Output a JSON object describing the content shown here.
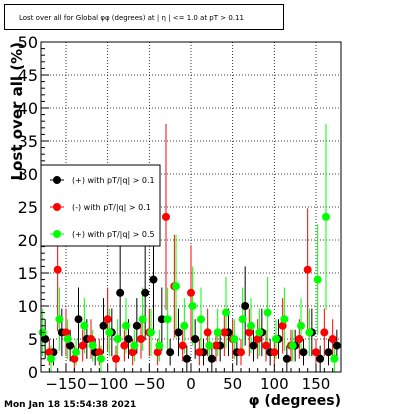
{
  "header": {
    "title": "Lost over all for Global φφ (degrees) at | η | <= 1.0 at pT > 0.11"
  },
  "footer": {
    "timestamp": "Mon Jan 18 15:54:38 2021"
  },
  "colors": {
    "series_black": "#000000",
    "series_red": "#ff0000",
    "series_green": "#00ff00",
    "series_orange": "#b8860b"
  },
  "chart_data": {
    "type": "scatter",
    "xlabel": "φ (degrees)",
    "ylabel": "Lost over all (%)",
    "xlim": [
      -180,
      180
    ],
    "ylim": [
      0,
      50
    ],
    "x_ticks": [
      -150,
      -100,
      -50,
      0,
      50,
      100,
      150
    ],
    "x_tick_labels": [
      "−150",
      "−100",
      "−50",
      "0",
      "50",
      "100",
      "150"
    ],
    "y_ticks": [
      0,
      5,
      10,
      15,
      20,
      25,
      30,
      35,
      40,
      45,
      50
    ],
    "grid": true,
    "legend_position": "middle-left",
    "series": [
      {
        "name": "(+) with pT/|q| > 0.1",
        "color": "#000000",
        "x": [
          -175,
          -165,
          -155,
          -145,
          -135,
          -125,
          -115,
          -105,
          -95,
          -85,
          -75,
          -65,
          -55,
          -45,
          -35,
          -25,
          -15,
          -5,
          5,
          15,
          25,
          35,
          45,
          55,
          65,
          75,
          85,
          95,
          105,
          115,
          125,
          135,
          145,
          155,
          165,
          175
        ],
        "y": [
          5,
          3,
          6,
          4,
          8,
          5,
          3,
          7,
          6,
          12,
          5,
          7,
          12,
          14,
          8,
          3,
          6,
          2,
          5,
          3,
          2,
          4,
          6,
          3,
          10,
          4,
          6,
          3,
          5,
          2,
          4,
          3,
          6,
          2,
          3,
          4
        ]
      },
      {
        "name": "(-) with pT/|q| > 0.1",
        "color": "#ff0000",
        "x": [
          -170,
          -160,
          -150,
          -140,
          -130,
          -120,
          -110,
          -100,
          -90,
          -80,
          -70,
          -60,
          -50,
          -40,
          -30,
          -20,
          -10,
          0,
          10,
          20,
          30,
          40,
          50,
          60,
          70,
          80,
          90,
          100,
          110,
          120,
          130,
          140,
          150,
          160,
          170
        ],
        "y": [
          3,
          15.5,
          6,
          2,
          4,
          5,
          3,
          8,
          2,
          4,
          3,
          5,
          6,
          3,
          23.5,
          13,
          4,
          12,
          3,
          6,
          4,
          6,
          5,
          3,
          6,
          5,
          4,
          3,
          7,
          4,
          5,
          15.5,
          3,
          6,
          5
        ]
      },
      {
        "name": "(+) with pT/|q| > 0.5",
        "color": "#00ff00",
        "x": [
          -178,
          -168,
          -158,
          -148,
          -138,
          -128,
          -118,
          -108,
          -98,
          -88,
          -78,
          -68,
          -58,
          -48,
          -38,
          -28,
          -18,
          -8,
          2,
          12,
          22,
          32,
          42,
          52,
          62,
          72,
          82,
          92,
          102,
          112,
          122,
          132,
          142,
          152,
          162,
          172
        ],
        "y": [
          6,
          2,
          8,
          5,
          3,
          7,
          4,
          2,
          6,
          5,
          7,
          4,
          8,
          6,
          4,
          8,
          13,
          7,
          10,
          8,
          4,
          6,
          9,
          5,
          8,
          7,
          6,
          9,
          5,
          8,
          4,
          7,
          6,
          14,
          23.5,
          2
        ]
      }
    ],
    "legend": [
      {
        "label": "(+) with pT/|q| > 0.1",
        "color": "#000000"
      },
      {
        "label": "(-) with pT/|q| > 0.1",
        "color": "#ff0000"
      },
      {
        "label": "(+) with pT/|q| > 0.5",
        "color": "#00ff00"
      }
    ]
  }
}
